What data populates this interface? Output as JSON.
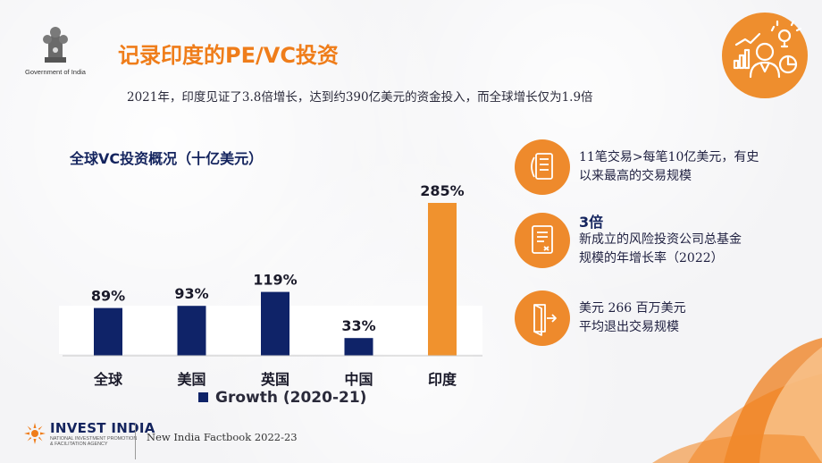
{
  "header": {
    "emblem_caption": "Government of India",
    "title": "记录印度的PE/VC投资",
    "subtitle": "2021年，印度见证了3.8倍增长，达到约390亿美元的资金投入，而全球增长仅为1.9倍"
  },
  "icons": {
    "top_badge": "investor-analytics-icon",
    "stat1": "deals-document-icon",
    "stat2": "fund-document-icon",
    "stat3": "exit-door-icon"
  },
  "colors": {
    "accent": "#ef7d1a",
    "navy": "#14245e",
    "bar_navy": "#0f2368",
    "bar_highlight": "#f0922e"
  },
  "chart_data": {
    "type": "bar",
    "title": "全球VC投资概况（十亿美元）",
    "categories": [
      "全球",
      "美国",
      "英国",
      "中国",
      "印度"
    ],
    "series": [
      {
        "name": "Growth (2020-21)",
        "values": [
          89,
          93,
          119,
          33,
          285
        ]
      }
    ],
    "data_labels": [
      "89%",
      "93%",
      "119%",
      "33%",
      "285%"
    ],
    "highlight_index": 4,
    "ylim": [
      0,
      300
    ],
    "grid": false,
    "legend": "bottom"
  },
  "stats": [
    {
      "headline": "",
      "line1": "11笔交易>每笔10亿美元，有史",
      "line2": "以来最高的交易规模"
    },
    {
      "headline": "3倍",
      "line1": "新成立的风险投资公司总基金",
      "line2": "规模的年增长率（2022）"
    },
    {
      "headline": "",
      "line1": "美元 266 百万美元",
      "line2": "平均退出交易规模"
    }
  ],
  "footer": {
    "brand": "INVEST INDIA",
    "brand_sub1": "NATIONAL INVESTMENT PROMOTION",
    "brand_sub2": "& FACILITATION AGENCY",
    "factbook": "New India Factbook 2022-23"
  }
}
